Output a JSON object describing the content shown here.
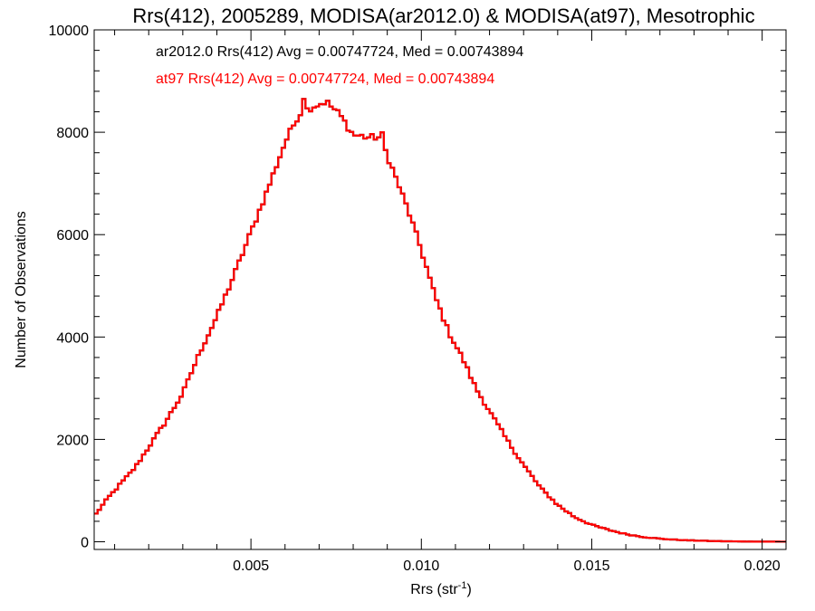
{
  "chart_data": {
    "type": "histogram",
    "title": "Rrs(412), 2005289, MODISA(ar2012.0) & MODISA(at97), Mesotrophic",
    "xlabel": "Rrs (str",
    "xlabel_sup": "-1",
    "xlabel_close": ")",
    "ylabel": "Number of Observations",
    "xlim": [
      0.0004,
      0.0207
    ],
    "ylim": [
      -150,
      10000
    ],
    "xticks": [
      0.005,
      0.01,
      0.015,
      0.02
    ],
    "xtick_labels": [
      "0.005",
      "0.010",
      "0.015",
      "0.020"
    ],
    "xminor_step": 0.001,
    "yticks": [
      0,
      2000,
      4000,
      6000,
      8000,
      10000
    ],
    "ytick_labels": [
      "0",
      "2000",
      "4000",
      "6000",
      "8000",
      "10000"
    ],
    "yminor_step": 400,
    "colors": {
      "series1": "#000000",
      "series2": "#ff0000",
      "axes": "#000000"
    },
    "annotations": [
      {
        "text": "ar2012.0 Rrs(412) Avg = 0.00747724, Med = 0.00743894",
        "color": "#000000"
      },
      {
        "text": "at97 Rrs(412) Avg = 0.00747724, Med = 0.00743894",
        "color": "#ff0000"
      }
    ],
    "series": [
      {
        "label": "ar2012.0",
        "color": "#000000",
        "draw_order": 1
      },
      {
        "label": "at97",
        "color": "#ff0000",
        "draw_order": 2
      }
    ],
    "bin_width": 0.0001,
    "shape_points": [
      [
        0.0004,
        500
      ],
      [
        0.0008,
        850
      ],
      [
        0.0012,
        1150
      ],
      [
        0.0016,
        1450
      ],
      [
        0.002,
        1850
      ],
      [
        0.0025,
        2350
      ],
      [
        0.003,
        2900
      ],
      [
        0.0035,
        3700
      ],
      [
        0.004,
        4400
      ],
      [
        0.0045,
        5200
      ],
      [
        0.005,
        6050
      ],
      [
        0.0055,
        6900
      ],
      [
        0.006,
        7800
      ],
      [
        0.0064,
        8350
      ],
      [
        0.0068,
        8500
      ],
      [
        0.0072,
        8600
      ],
      [
        0.0076,
        8350
      ],
      [
        0.008,
        7950
      ],
      [
        0.0084,
        7900
      ],
      [
        0.0088,
        7900
      ],
      [
        0.0092,
        7200
      ],
      [
        0.0096,
        6500
      ],
      [
        0.01,
        5700
      ],
      [
        0.0104,
        4800
      ],
      [
        0.0108,
        4100
      ],
      [
        0.0112,
        3600
      ],
      [
        0.0116,
        3000
      ],
      [
        0.012,
        2550
      ],
      [
        0.0125,
        2000
      ],
      [
        0.013,
        1500
      ],
      [
        0.0135,
        1050
      ],
      [
        0.014,
        720
      ],
      [
        0.0145,
        480
      ],
      [
        0.015,
        330
      ],
      [
        0.0155,
        230
      ],
      [
        0.016,
        150
      ],
      [
        0.0165,
        95
      ],
      [
        0.017,
        60
      ],
      [
        0.0175,
        38
      ],
      [
        0.018,
        24
      ],
      [
        0.0185,
        14
      ],
      [
        0.019,
        9
      ],
      [
        0.0195,
        5
      ],
      [
        0.02,
        3
      ],
      [
        0.0207,
        1
      ]
    ],
    "spikes": [
      {
        "x": 0.0065,
        "value": 8650
      },
      {
        "x": 0.0082,
        "value": 7950
      },
      {
        "x": 0.0088,
        "value": 8000
      }
    ]
  }
}
